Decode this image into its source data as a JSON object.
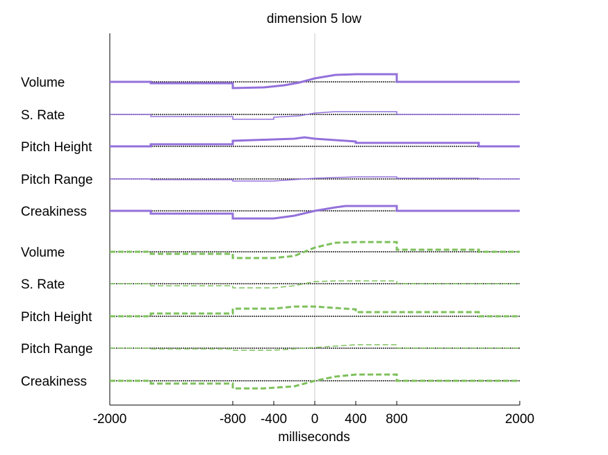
{
  "chart_data": {
    "type": "line",
    "title": "dimension  5 low",
    "xlabel": "milliseconds",
    "xlim": [
      -2000,
      2000
    ],
    "xticks": [
      -2000,
      -800,
      -400,
      0,
      400,
      800,
      2000
    ],
    "xtick_labels": [
      "-2000",
      "-800",
      "-400",
      "0",
      "400",
      "800",
      "2000"
    ],
    "zero_line": true,
    "series": [
      {
        "group": "purple",
        "label": "Volume",
        "color": "#9370db",
        "style": "solid",
        "width": 3,
        "x": [
          -2000,
          -1600,
          -1600,
          -800,
          -800,
          -500,
          -300,
          -150,
          0,
          200,
          400,
          800,
          800,
          2000
        ],
        "y": [
          0,
          0,
          -2,
          -2,
          -9,
          -8,
          -5,
          -1,
          5,
          10,
          11,
          11,
          0,
          0
        ]
      },
      {
        "group": "purple",
        "label": "S. Rate",
        "color": "#9370db",
        "style": "solid",
        "width": 1.5,
        "x": [
          -2000,
          -1600,
          -1600,
          -800,
          -800,
          -400,
          -400,
          -150,
          0,
          200,
          400,
          800,
          800,
          2000
        ],
        "y": [
          0,
          0,
          -3,
          -3,
          -7,
          -7,
          -4,
          -2,
          2,
          4,
          4,
          4,
          0,
          0
        ]
      },
      {
        "group": "purple",
        "label": "Pitch Height",
        "color": "#9370db",
        "style": "solid",
        "width": 3,
        "x": [
          -2000,
          -1600,
          -1600,
          -800,
          -800,
          -400,
          -200,
          -100,
          0,
          200,
          400,
          400,
          1600,
          1600,
          2000
        ],
        "y": [
          0,
          0,
          3,
          3,
          8,
          10,
          11,
          13,
          11,
          9,
          7,
          5,
          5,
          0,
          0
        ]
      },
      {
        "group": "purple",
        "label": "Pitch Range",
        "color": "#9370db",
        "style": "solid",
        "width": 1.5,
        "x": [
          -2000,
          -1600,
          -1600,
          -800,
          -800,
          -400,
          -200,
          0,
          200,
          400,
          800,
          800,
          1600,
          1600,
          2000
        ],
        "y": [
          0,
          0,
          -1,
          -1,
          -3,
          -3,
          -1,
          1,
          2,
          3,
          3,
          1,
          1,
          0,
          0
        ]
      },
      {
        "group": "purple",
        "label": "Creakiness",
        "color": "#9370db",
        "style": "solid",
        "width": 3,
        "x": [
          -2000,
          -1600,
          -1600,
          -800,
          -800,
          -400,
          -200,
          0,
          200,
          300,
          800,
          800,
          2000
        ],
        "y": [
          0,
          0,
          -4,
          -4,
          -11,
          -11,
          -7,
          0,
          5,
          7,
          7,
          0,
          0
        ]
      },
      {
        "group": "green",
        "label": "Volume",
        "color": "#7dc05b",
        "style": "dashed",
        "width": 3,
        "x": [
          -2000,
          -1600,
          -1600,
          -800,
          -800,
          -400,
          -200,
          0,
          200,
          400,
          800,
          800,
          1600,
          1600,
          2000
        ],
        "y": [
          0,
          0,
          -3,
          -3,
          -9,
          -9,
          -6,
          6,
          13,
          14,
          14,
          3,
          3,
          0,
          0
        ]
      },
      {
        "group": "green",
        "label": "S. Rate",
        "color": "#7dc05b",
        "style": "dashed",
        "width": 1.5,
        "x": [
          -2000,
          -1600,
          -1600,
          -800,
          -800,
          -400,
          -200,
          0,
          200,
          400,
          800,
          800,
          2000
        ],
        "y": [
          0,
          0,
          -3,
          -3,
          -6,
          -6,
          -3,
          3,
          4,
          4,
          4,
          0,
          0
        ]
      },
      {
        "group": "green",
        "label": "Pitch Height",
        "color": "#7dc05b",
        "style": "dashed",
        "width": 3,
        "x": [
          -2000,
          -1600,
          -1600,
          -800,
          -800,
          -400,
          -200,
          0,
          200,
          400,
          400,
          1600,
          1600,
          2000
        ],
        "y": [
          0,
          0,
          4,
          4,
          11,
          11,
          14,
          14,
          12,
          10,
          6,
          6,
          0,
          0
        ]
      },
      {
        "group": "green",
        "label": "Pitch Range",
        "color": "#7dc05b",
        "style": "dashed",
        "width": 1.5,
        "x": [
          -2000,
          -1600,
          -1600,
          -800,
          -800,
          -400,
          -200,
          0,
          200,
          400,
          800,
          800,
          2000
        ],
        "y": [
          0,
          0,
          -1,
          -1,
          -3,
          -3,
          -1,
          1,
          3,
          5,
          5,
          0,
          0
        ]
      },
      {
        "group": "green",
        "label": "Creakiness",
        "color": "#7dc05b",
        "style": "dashed",
        "width": 3,
        "x": [
          -2000,
          -1600,
          -1600,
          -800,
          -800,
          -500,
          -200,
          0,
          200,
          400,
          800,
          800,
          2000
        ],
        "y": [
          0,
          0,
          -4,
          -4,
          -11,
          -11,
          -8,
          0,
          6,
          9,
          9,
          0,
          0
        ]
      }
    ]
  }
}
